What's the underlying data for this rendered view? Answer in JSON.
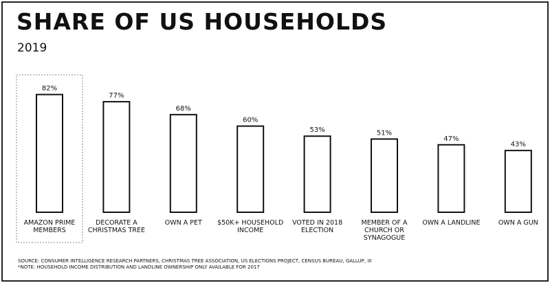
{
  "title": "SHARE OF US HOUSEHOLDS",
  "subtitle": "2019",
  "chart_data": {
    "type": "bar",
    "title": "SHARE OF US HOUSEHOLDS",
    "subtitle": "2019",
    "categories": [
      "AMAZON PRIME MEMBERS",
      "DECORATE A CHRISTMAS TREE",
      "OWN A PET",
      "$50K+ HOUSEHOLD INCOME",
      "VOTED IN 2018 ELECTION",
      "MEMBER OF A CHURCH OR SYNAGOGUE",
      "OWN A LANDLINE",
      "OWN A GUN"
    ],
    "category_lines": [
      [
        "AMAZON PRIME",
        "MEMBERS"
      ],
      [
        "DECORATE A",
        "CHRISTMAS TREE"
      ],
      [
        "OWN A PET"
      ],
      [
        "$50K+ HOUSEHOLD",
        "INCOME"
      ],
      [
        "VOTED IN 2018",
        "ELECTION"
      ],
      [
        "MEMBER OF A",
        "CHURCH OR",
        "SYNAGOGUE"
      ],
      [
        "OWN A LANDLINE"
      ],
      [
        "OWN A GUN"
      ]
    ],
    "values": [
      82,
      77,
      68,
      60,
      53,
      51,
      47,
      43
    ],
    "value_labels": [
      "82%",
      "77%",
      "68%",
      "60%",
      "53%",
      "51%",
      "47%",
      "43%"
    ],
    "unit": "%",
    "highlighted_category": "AMAZON PRIME MEMBERS",
    "xlabel": "",
    "ylabel": "",
    "grid": false,
    "legend": "none",
    "colors": {
      "bar_fill": "#ffffff",
      "bar_stroke": "#111111",
      "highlight_border": "#888888"
    }
  },
  "source": {
    "line1": "SOURCE: CONSUMER INTELLIGENCE RESEARCH PARTNERS, CHRISTMAS TREE ASSOCIATION, US ELECTIONS PROJECT, CENSUS BUREAU, GALLUP, III",
    "line2": "*NOTE: HOUSEHOLD INCOME DISTRIBUTION AND LANDLINE OWNERSHIP ONLY AVAILABLE FOR 2017"
  }
}
